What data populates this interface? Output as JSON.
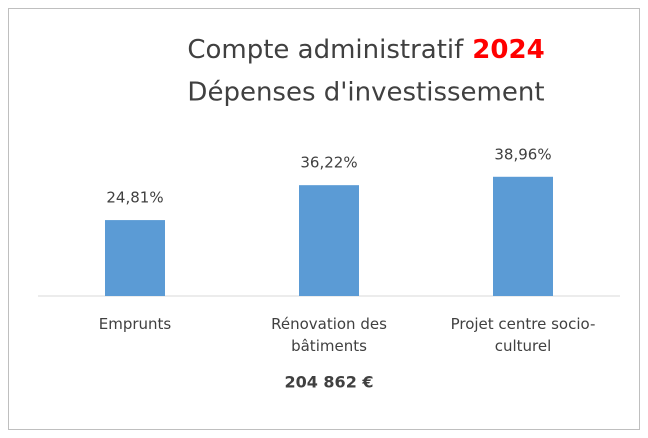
{
  "chart_data": {
    "type": "bar",
    "title": "Compte administratif",
    "title_highlight": "2024",
    "subtitle": "Dépenses d'investissement",
    "categories": [
      "Emprunts",
      "Rénovation des bâtiments",
      "Projet centre socio-culturel"
    ],
    "values": [
      24.81,
      36.22,
      38.96
    ],
    "value_labels": [
      "24,81%",
      "36,22%",
      "38,96%"
    ],
    "color": "#5b9bd5",
    "highlight_color": "#ff0000",
    "annotation": "204 862 €"
  }
}
